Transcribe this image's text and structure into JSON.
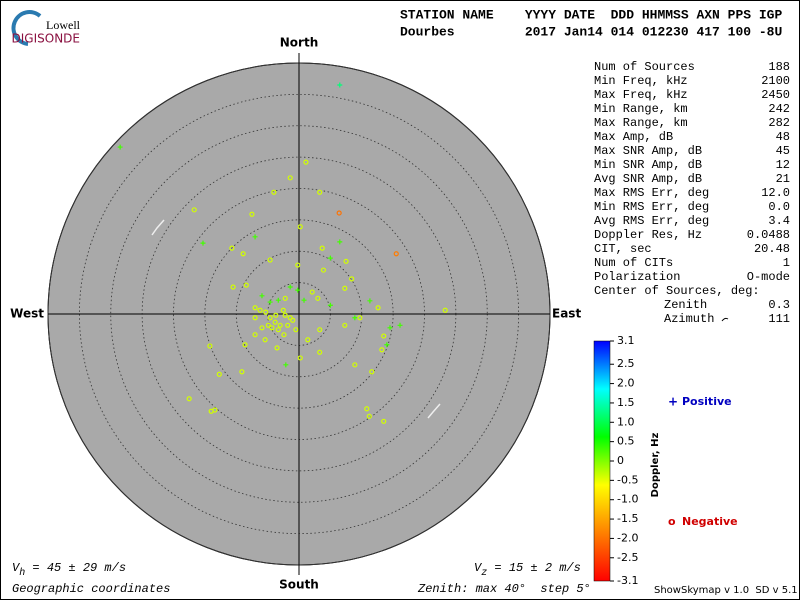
{
  "logo": {
    "top": "Lowell",
    "bottom": "DIGISONDE"
  },
  "header": {
    "line1": "STATION NAME    YYYY DATE  DDD HHMMSS AXN PPS IGP",
    "line2": "Dourbes         2017 Jan14 014 012230 417 100 -8U"
  },
  "stats": [
    {
      "label": "Num of Sources",
      "value": "188"
    },
    {
      "label": "Min Freq, kHz",
      "value": "2100"
    },
    {
      "label": "Max Freq, kHz",
      "value": "2450"
    },
    {
      "label": "Min Range, km",
      "value": "242"
    },
    {
      "label": "Max Range, km",
      "value": "282"
    },
    {
      "label": "Max Amp, dB",
      "value": "48"
    },
    {
      "label": "Max SNR Amp, dB",
      "value": "45"
    },
    {
      "label": "Min SNR Amp, dB",
      "value": "12"
    },
    {
      "label": "Avg SNR Amp, dB",
      "value": "21"
    },
    {
      "label": "Max RMS Err, deg",
      "value": "12.0"
    },
    {
      "label": "Min RMS Err, deg",
      "value": "0.0"
    },
    {
      "label": "Avg RMS Err, deg",
      "value": "3.4"
    },
    {
      "label": "Doppler Res, Hz",
      "value": "0.0488"
    },
    {
      "label": "CIT, sec",
      "value": "20.48"
    },
    {
      "label": "Num of CITs",
      "value": "1"
    },
    {
      "label": "Polarization",
      "value": "O-mode"
    }
  ],
  "center": {
    "title": "Center of Sources, deg:",
    "rows": [
      {
        "label": "Zenith",
        "value": "0.3"
      },
      {
        "label": "Azimuth",
        "value": "111"
      }
    ]
  },
  "footer": {
    "vh": "V",
    "vh_sub": "h",
    "vh_text": " = 45 ± 29 m/s",
    "vz": "V",
    "vz_sub": "z",
    "vz_text": " = 15 ± 2 m/s",
    "coords": "Geographic coordinates",
    "zenith": "Zenith: max 40°  step 5°",
    "version": "ShowSkymap v 1.0  SD v 5.1"
  },
  "chart_data": {
    "type": "skymap",
    "directions": {
      "north": "North",
      "south": "South",
      "east": "East",
      "west": "West"
    },
    "xlim": [
      -40,
      40
    ],
    "ylim": [
      -40,
      40
    ],
    "rticks": [
      5,
      10,
      15,
      20,
      25,
      30,
      35,
      40
    ],
    "background": "#a9a9a9",
    "points": {
      "x": [
        6.5,
        -28.5,
        1.1,
        -1.4,
        -4.0,
        3.3,
        -16.7,
        6.4,
        -7.5,
        0.2,
        -15.3,
        -7.0,
        6.5,
        -8.9,
        -10.7,
        3.7,
        15.5,
        5.0,
        7.5,
        3.9,
        -4.6,
        -0.2,
        8.4,
        -10.5,
        -8.4,
        -1.4,
        2.1,
        3.0,
        7.3,
        5.0,
        11.3,
        23.3,
        16.1,
        14.5,
        12.6,
        9.7,
        7.3,
        3.3,
        1.4,
        8.9,
        13.5,
        14.0,
        13.2,
        8.9,
        11.6,
        3.3,
        0.2,
        -2.1,
        -3.5,
        -5.4,
        -7.0,
        -8.6,
        -14.2,
        -9.1,
        -12.7,
        -17.5,
        -13.4,
        -14.0,
        10.8,
        11.2,
        13.5,
        -4.6,
        -3.8,
        -3.0,
        -2.2,
        -1.4,
        -4.3,
        -4.9,
        -3.3,
        -2.5,
        -1.8,
        -1.0,
        -3.7,
        -5.3,
        -6.2,
        -7.0,
        -5.9,
        -2.4,
        -0.5,
        -4.6,
        -3.3,
        -2.2,
        -5.9,
        -7.0,
        -0.2,
        0.8
      ],
      "y": [
        36.5,
        26.6,
        24.2,
        21.7,
        19.4,
        19.4,
        16.6,
        16.1,
        15.9,
        13.9,
        11.3,
        12.3,
        11.5,
        9.6,
        10.5,
        10.5,
        9.6,
        8.9,
        8.4,
        7.0,
        8.6,
        7.8,
        5.6,
        4.3,
        4.6,
        4.3,
        3.5,
        2.5,
        4.1,
        1.4,
        2.1,
        0.6,
        -1.8,
        -2.2,
        1.0,
        -0.6,
        -1.8,
        -2.5,
        -4.1,
        -0.6,
        -3.5,
        -4.9,
        -5.7,
        -8.1,
        -9.2,
        -6.1,
        -7.0,
        -8.1,
        -5.4,
        -4.1,
        -3.3,
        -4.9,
        -5.1,
        -9.2,
        -9.6,
        -13.5,
        -15.3,
        -15.5,
        -15.1,
        -16.3,
        -17.1,
        -0.6,
        -1.3,
        -1.8,
        -0.2,
        -0.6,
        -2.2,
        -1.8,
        -2.5,
        0.6,
        -1.8,
        -1.0,
        -0.2,
        0.3,
        0.6,
        -0.6,
        -2.2,
        -3.3,
        -2.5,
        1.9,
        2.2,
        2.5,
        2.9,
        1.0,
        3.8,
        2.2
      ],
      "doppler": [
        1.2,
        0.3,
        -0.4,
        -0.4,
        -0.4,
        -0.4,
        -0.4,
        -2.0,
        -0.4,
        -0.4,
        0.3,
        0.3,
        0.3,
        -0.4,
        -0.4,
        -0.4,
        -1.9,
        0.3,
        -0.4,
        -0.4,
        -0.4,
        -0.4,
        -0.4,
        -0.4,
        -0.4,
        0.3,
        -0.4,
        -0.4,
        -0.4,
        0.3,
        0.3,
        -0.4,
        0.3,
        0.3,
        -0.4,
        -0.4,
        -0.4,
        -0.4,
        -0.4,
        0.3,
        -0.4,
        0.3,
        -0.4,
        -0.4,
        -0.4,
        -0.4,
        -0.4,
        0.3,
        -0.4,
        -0.4,
        -0.4,
        -0.4,
        -0.4,
        -0.4,
        -0.4,
        -0.4,
        -0.4,
        -0.4,
        -0.4,
        -0.4,
        -0.4,
        -0.4,
        -0.4,
        -0.4,
        -0.4,
        -0.4,
        -0.4,
        -0.4,
        -0.4,
        -0.4,
        -0.4,
        -0.4,
        -0.4,
        -0.4,
        -0.4,
        -0.4,
        -0.4,
        -0.4,
        -0.4,
        0.3,
        0.3,
        -0.4,
        0.3,
        -0.4,
        0.3,
        0.3
      ]
    },
    "colorbar": {
      "title": "Doppler, Hz",
      "clim": [
        -3.1,
        3.1
      ],
      "colormap": [
        "#ff0000",
        "#ff8000",
        "#ffff00",
        "#00ff00",
        "#00ffff",
        "#0000ff"
      ],
      "ticks": [
        3.1,
        2.5,
        {
          "value": 2,
          "label": "2.0"
        },
        1.5,
        {
          "value": 1,
          "label": "1.0"
        },
        0.5,
        0,
        -0.5,
        {
          "value": -1,
          "label": "-1.0"
        },
        -1.5,
        {
          "value": -2,
          "label": "-2.0"
        },
        -2.5,
        -3.1
      ]
    },
    "legend": {
      "positive": {
        "symbol": "+",
        "label": "Positive",
        "color": "#0000c0"
      },
      "negative": {
        "symbol": "o",
        "label": "Negative",
        "color": "#d00000"
      }
    }
  }
}
